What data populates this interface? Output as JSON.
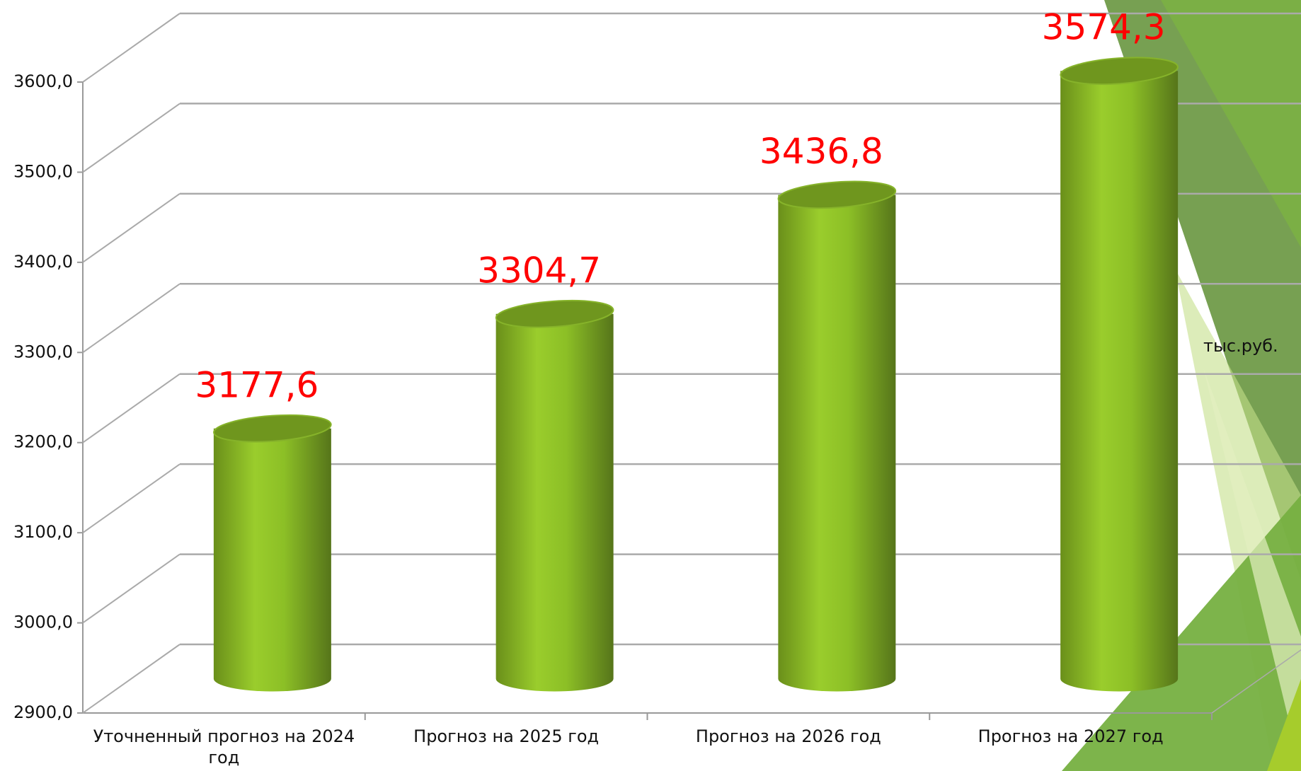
{
  "chart_data": {
    "type": "bar3d",
    "categories": [
      "Уточненный прогноз на 2024 год",
      "Прогноз на 2025 год",
      "Прогноз на 2026 год",
      "Прогноз на 2027 год"
    ],
    "values": [
      3177.6,
      3304.7,
      3436.8,
      3574.3
    ],
    "value_labels": [
      "3177,6",
      "3304,7",
      "3436,8",
      "3574,3"
    ],
    "color": "#8cbf26",
    "label_color": "#ff0000",
    "ylim": [
      2900,
      3600
    ],
    "yticks": [
      {
        "value": 2900,
        "label": "2900,0"
      },
      {
        "value": 3000,
        "label": "3000,0"
      },
      {
        "value": 3100,
        "label": "3100,0"
      },
      {
        "value": 3200,
        "label": "3200,0"
      },
      {
        "value": 3300,
        "label": "3300,0"
      },
      {
        "value": 3400,
        "label": "3400,0"
      },
      {
        "value": 3500,
        "label": "3500,0"
      },
      {
        "value": 3600,
        "label": "3600,0"
      }
    ],
    "grid": true,
    "unit_label": "тыс.руб."
  }
}
